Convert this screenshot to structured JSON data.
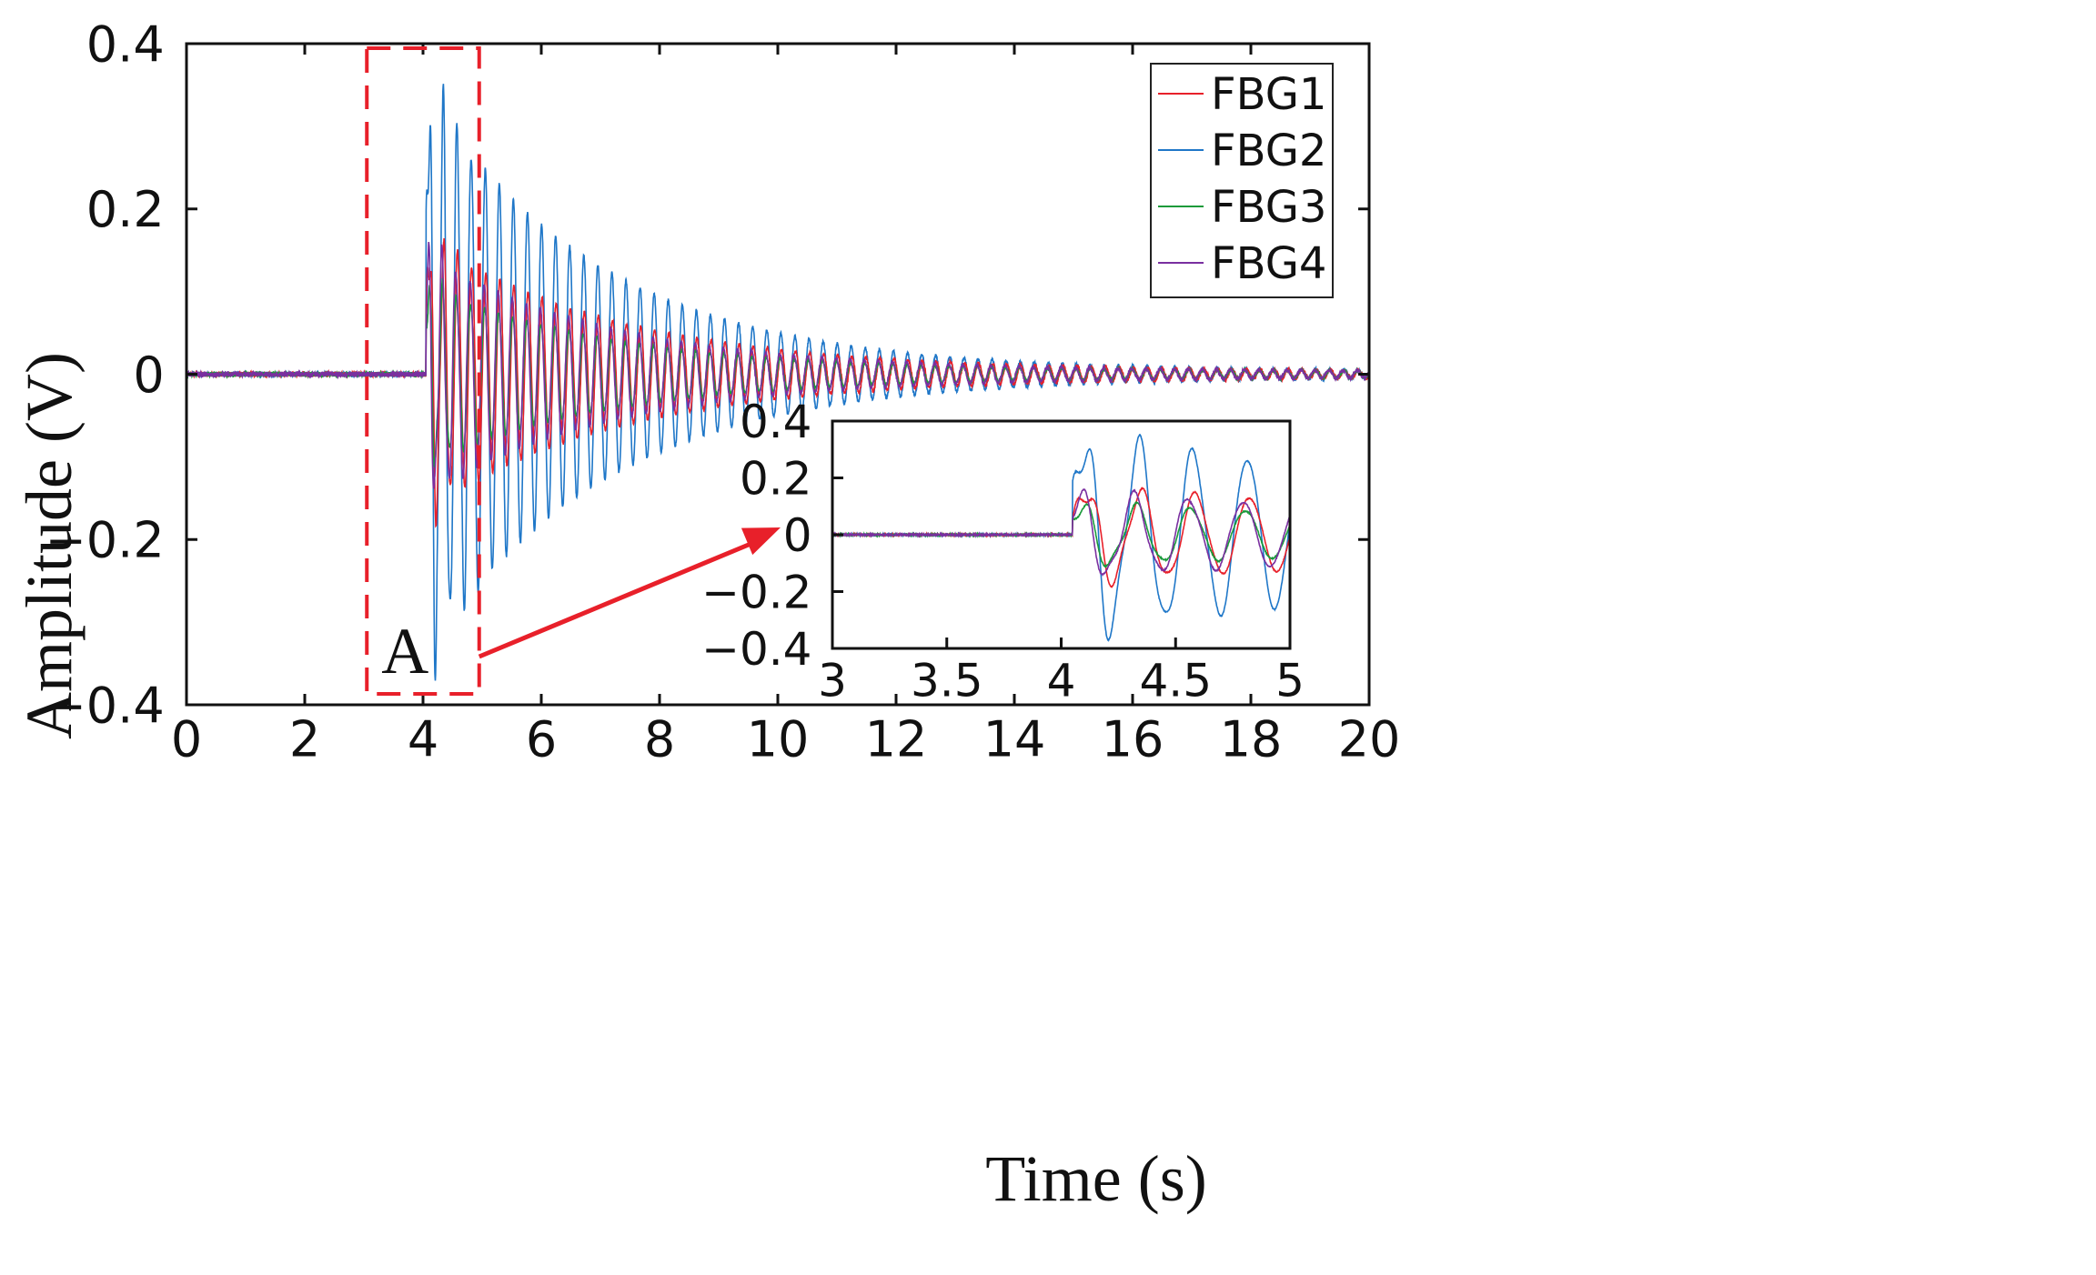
{
  "chart_data": {
    "type": "line",
    "title": "",
    "xlabel": "Time (s)",
    "ylabel": "Amplitude (V)",
    "xlim": [
      0,
      20
    ],
    "ylim": [
      -0.4,
      0.4
    ],
    "x_ticks": [
      0,
      2,
      4,
      6,
      8,
      10,
      12,
      14,
      16,
      18,
      20
    ],
    "x_tick_labels": [
      "0",
      "2",
      "4",
      "6",
      "8",
      "10",
      "12",
      "14",
      "16",
      "18",
      "20"
    ],
    "y_ticks": [
      -0.4,
      -0.2,
      0,
      0.2,
      0.4
    ],
    "y_tick_labels": [
      "−0.4",
      "−0.2",
      "0",
      "0.2",
      "0.4"
    ],
    "legend_position": "top-right",
    "impact_time": 4.05,
    "series": [
      {
        "name": "FBG1",
        "color": "#e8202a",
        "peak_amplitude": 0.17,
        "frequency_hz": 4.2,
        "decay_per_s": 0.19
      },
      {
        "name": "FBG2",
        "color": "#1f77c8",
        "peak_amplitude": 0.36,
        "frequency_hz": 4.2,
        "decay_per_s": 0.21
      },
      {
        "name": "FBG3",
        "color": "#1a9a3a",
        "peak_amplitude": 0.11,
        "frequency_hz": 4.2,
        "decay_per_s": 0.2
      },
      {
        "name": "FBG4",
        "color": "#7a2fa0",
        "peak_amplitude": 0.15,
        "frequency_hz": 4.2,
        "decay_per_s": 0.2
      }
    ],
    "highlight_region": {
      "label": "A",
      "x_range": [
        3.05,
        4.95
      ],
      "color": "#e8202a"
    },
    "inset": {
      "xlim": [
        3,
        5
      ],
      "ylim": [
        -0.4,
        0.4
      ],
      "x_ticks": [
        3,
        3.5,
        4,
        4.5,
        5
      ],
      "x_tick_labels": [
        "3",
        "3.5",
        "4",
        "4.5",
        "5"
      ],
      "y_ticks": [
        -0.4,
        -0.2,
        0,
        0.2,
        0.4
      ],
      "y_tick_labels": [
        "−0.4",
        "−0.2",
        "0",
        "0.2",
        "0.4"
      ]
    }
  }
}
